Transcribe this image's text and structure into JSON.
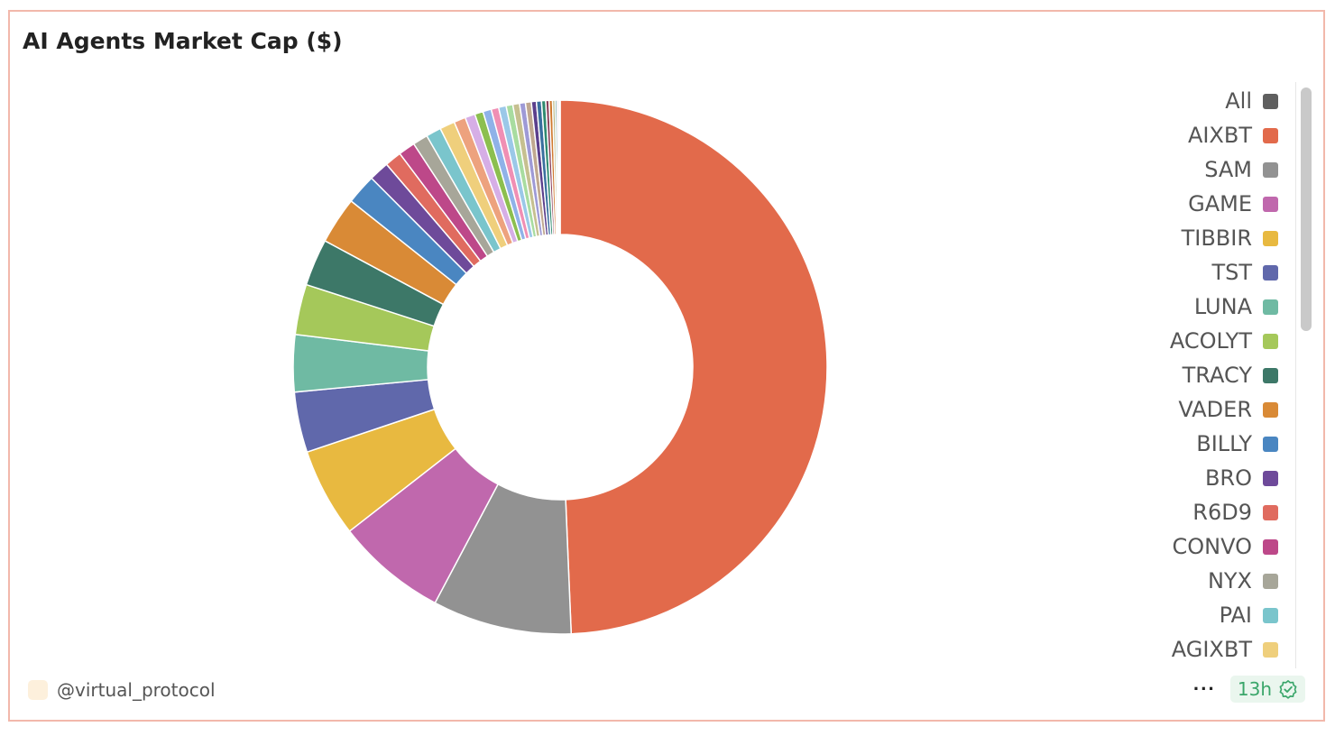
{
  "title": "AI Agents Market Cap ($)",
  "author": "@virtual_protocol",
  "footer": {
    "more_label": "···",
    "age_label": "13h"
  },
  "chart_data": {
    "type": "pie",
    "donut": true,
    "title": "AI Agents Market Cap ($)",
    "legend_position": "right",
    "legend_entries": [
      "All",
      "AIXBT",
      "SAM",
      "GAME",
      "TIBBIR",
      "TST",
      "LUNA",
      "ACOLYT",
      "TRACY",
      "VADER",
      "BILLY",
      "BRO",
      "R6D9",
      "CONVO",
      "NYX",
      "PAI",
      "AGIXBT"
    ],
    "legend_colors": [
      "#5f5f5f",
      "#e26a4b",
      "#929292",
      "#c068ad",
      "#e8b940",
      "#6068ab",
      "#6fbaa3",
      "#a5c85a",
      "#3d7868",
      "#d98a36",
      "#4a86c1",
      "#6e4a9a",
      "#e06b5f",
      "#bd4889",
      "#a7a699",
      "#7ac5cc",
      "#efcf7c"
    ],
    "slices": [
      {
        "label": "AIXBT",
        "value": 48.6,
        "color": "#e26a4b"
      },
      {
        "label": "SAM",
        "value": 8.3,
        "color": "#929292"
      },
      {
        "label": "GAME",
        "value": 6.6,
        "color": "#c068ad"
      },
      {
        "label": "TIBBIR",
        "value": 5.3,
        "color": "#e8b940"
      },
      {
        "label": "TST",
        "value": 3.6,
        "color": "#6068ab"
      },
      {
        "label": "LUNA",
        "value": 3.4,
        "color": "#6fbaa3"
      },
      {
        "label": "ACOLYT",
        "value": 3.0,
        "color": "#a5c85a"
      },
      {
        "label": "TRACY",
        "value": 2.8,
        "color": "#3d7868"
      },
      {
        "label": "VADER",
        "value": 2.8,
        "color": "#d98a36"
      },
      {
        "label": "BILLY",
        "value": 1.8,
        "color": "#4a86c1"
      },
      {
        "label": "BRO",
        "value": 1.2,
        "color": "#6e4a9a"
      },
      {
        "label": "R6D9",
        "value": 1.0,
        "color": "#e06b5f"
      },
      {
        "label": "CONVO",
        "value": 1.0,
        "color": "#bd4889"
      },
      {
        "label": "NYX",
        "value": 0.9,
        "color": "#a7a699"
      },
      {
        "label": "PAI",
        "value": 0.9,
        "color": "#7ac5cc"
      },
      {
        "label": "AGIXBT",
        "value": 0.9,
        "color": "#efcf7c"
      },
      {
        "label": "",
        "value": 0.7,
        "color": "#eda27e"
      },
      {
        "label": "",
        "value": 0.6,
        "color": "#d6aee6"
      },
      {
        "label": "",
        "value": 0.5,
        "color": "#8cbf4f"
      },
      {
        "label": "",
        "value": 0.5,
        "color": "#8fb2e8"
      },
      {
        "label": "",
        "value": 0.45,
        "color": "#f08fb4"
      },
      {
        "label": "",
        "value": 0.45,
        "color": "#9bc8e8"
      },
      {
        "label": "",
        "value": 0.4,
        "color": "#a8dca0"
      },
      {
        "label": "",
        "value": 0.4,
        "color": "#c6c090"
      },
      {
        "label": "",
        "value": 0.35,
        "color": "#9e9ad6"
      },
      {
        "label": "",
        "value": 0.35,
        "color": "#c0a890"
      },
      {
        "label": "",
        "value": 0.3,
        "color": "#5b3f8c"
      },
      {
        "label": "",
        "value": 0.3,
        "color": "#3a6f9e"
      },
      {
        "label": "",
        "value": 0.25,
        "color": "#2f8a6f"
      },
      {
        "label": "",
        "value": 0.2,
        "color": "#8a3f5a"
      },
      {
        "label": "",
        "value": 0.2,
        "color": "#d07a30"
      },
      {
        "label": "",
        "value": 0.15,
        "color": "#b5b580"
      },
      {
        "label": "",
        "value": 0.12,
        "color": "#6fa0a0"
      },
      {
        "label": "",
        "value": 0.1,
        "color": "#c9a0c0"
      },
      {
        "label": "",
        "value": 0.08,
        "color": "#88c070"
      }
    ]
  }
}
